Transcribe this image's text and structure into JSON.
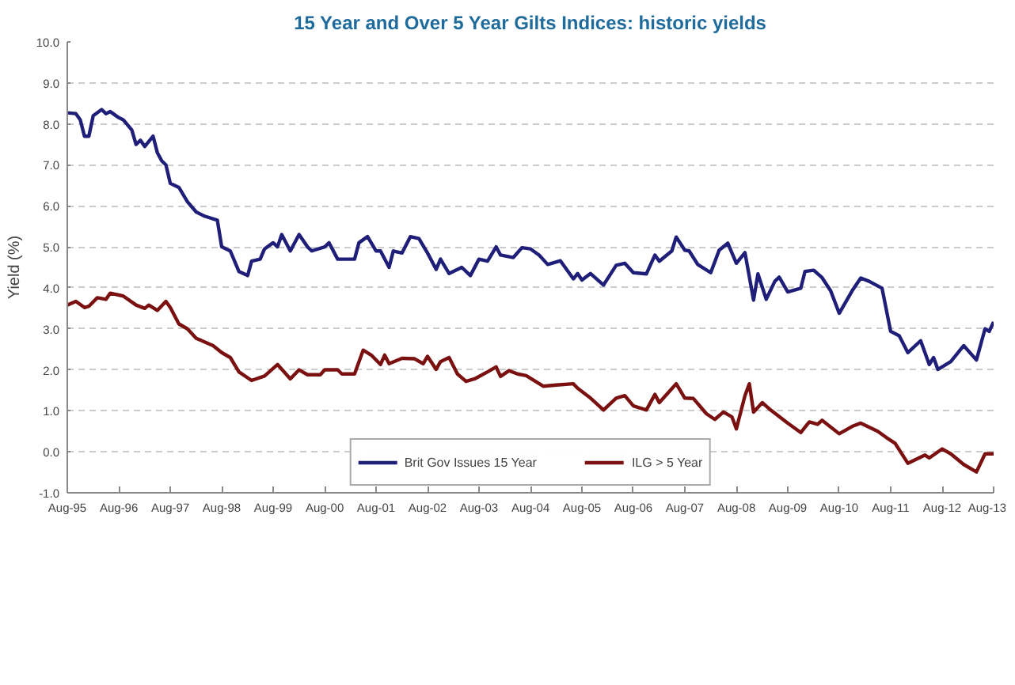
{
  "chart_data": {
    "type": "line",
    "title": "15 Year and Over 5 Year Gilts Indices: historic yields",
    "ylabel": "Yield (%)",
    "ylim": [
      -1,
      10
    ],
    "yticks": [
      {
        "value": -1,
        "label": "-1.0"
      },
      {
        "value": 0,
        "label": "0.0"
      },
      {
        "value": 1,
        "label": "1.0"
      },
      {
        "value": 2,
        "label": "2.0"
      },
      {
        "value": 3,
        "label": "3.0"
      },
      {
        "value": 4,
        "label": "4.0"
      },
      {
        "value": 5,
        "label": "5.0"
      },
      {
        "value": 6,
        "label": "6.0"
      },
      {
        "value": 7,
        "label": "7.0"
      },
      {
        "value": 8,
        "label": "8.0"
      },
      {
        "value": 9,
        "label": "9.0"
      },
      {
        "value": 10,
        "label": "10.0"
      }
    ],
    "xlim": [
      "1995-08",
      "2013-08"
    ],
    "xticks": [
      {
        "value": "1995-08",
        "label": "Aug-95"
      },
      {
        "value": "1996-08",
        "label": "Aug-96"
      },
      {
        "value": "1997-08",
        "label": "Aug-97"
      },
      {
        "value": "1998-08",
        "label": "Aug-98"
      },
      {
        "value": "1999-08",
        "label": "Aug-99"
      },
      {
        "value": "2000-08",
        "label": "Aug-00"
      },
      {
        "value": "2001-08",
        "label": "Aug-01"
      },
      {
        "value": "2002-08",
        "label": "Aug-02"
      },
      {
        "value": "2003-08",
        "label": "Aug-03"
      },
      {
        "value": "2004-08",
        "label": "Aug-04"
      },
      {
        "value": "2005-08",
        "label": "Aug-05"
      },
      {
        "value": "2006-08",
        "label": "Aug-06"
      },
      {
        "value": "2007-08",
        "label": "Aug-07"
      },
      {
        "value": "2008-08",
        "label": "Aug-08"
      },
      {
        "value": "2009-08",
        "label": "Aug-09"
      },
      {
        "value": "2010-08",
        "label": "Aug-10"
      },
      {
        "value": "2011-08",
        "label": "Aug-11"
      },
      {
        "value": "2012-08",
        "label": "Aug-12"
      },
      {
        "value": "2013-08",
        "label": "Aug-13"
      }
    ],
    "grid": "y",
    "legend": "bottom",
    "line_style": "solid",
    "series": [
      {
        "name": "Brit Gov Issues 15 Year",
        "color": "#1f1f7a",
        "x": [
          "1995-08",
          "1995-10",
          "1995-11",
          "1995-12",
          "1996-01",
          "1996-02",
          "1996-04",
          "1996-05",
          "1996-06",
          "1996-08",
          "1996-09",
          "1996-11",
          "1996-12",
          "1997-01",
          "1997-02",
          "1997-04",
          "1997-05",
          "1997-06",
          "1997-07",
          "1997-08",
          "1997-10",
          "1997-12",
          "1998-02",
          "1998-04",
          "1998-07",
          "1998-08",
          "1998-10",
          "1998-12",
          "1999-02",
          "1999-03",
          "1999-05",
          "1999-06",
          "1999-08",
          "1999-09",
          "1999-10",
          "1999-12",
          "2000-02",
          "2000-04",
          "2000-05",
          "2000-08",
          "2000-09",
          "2000-11",
          "2001-03",
          "2001-04",
          "2001-06",
          "2001-08",
          "2001-09",
          "2001-11",
          "2001-12",
          "2002-02",
          "2002-04",
          "2002-06",
          "2002-08",
          "2002-10",
          "2002-11",
          "2003-01",
          "2003-04",
          "2003-06",
          "2003-08",
          "2003-10",
          "2003-12",
          "2004-01",
          "2004-04",
          "2004-06",
          "2004-08",
          "2004-10",
          "2004-12",
          "2005-03",
          "2005-06",
          "2005-07",
          "2005-08",
          "2005-10",
          "2006-01",
          "2006-04",
          "2006-06",
          "2006-08",
          "2006-11",
          "2007-01",
          "2007-02",
          "2007-05",
          "2007-06",
          "2007-08",
          "2007-09",
          "2007-11",
          "2008-02",
          "2008-04",
          "2008-06",
          "2008-08",
          "2008-10",
          "2008-12",
          "2009-01",
          "2009-03",
          "2009-05",
          "2009-06",
          "2009-08",
          "2009-11",
          "2009-12",
          "2010-02",
          "2010-04",
          "2010-06",
          "2010-08",
          "2010-11",
          "2011-01",
          "2011-03",
          "2011-06",
          "2011-08",
          "2011-10",
          "2011-12",
          "2012-03",
          "2012-05",
          "2012-06",
          "2012-07",
          "2012-10",
          "2013-01",
          "2013-04",
          "2013-06",
          "2013-07",
          "2013-08"
        ],
        "values": [
          8.27,
          8.25,
          8.1,
          7.7,
          7.7,
          8.2,
          8.35,
          8.25,
          8.3,
          8.15,
          8.1,
          7.85,
          7.5,
          7.6,
          7.45,
          7.7,
          7.3,
          7.1,
          7.0,
          6.55,
          6.45,
          6.1,
          5.85,
          5.75,
          5.65,
          5.0,
          4.9,
          4.4,
          4.3,
          4.65,
          4.7,
          4.95,
          5.1,
          5.0,
          5.3,
          4.9,
          5.3,
          5.0,
          4.9,
          5.0,
          5.1,
          4.7,
          4.7,
          5.1,
          5.25,
          4.9,
          4.9,
          4.5,
          4.9,
          4.85,
          5.25,
          5.2,
          4.85,
          4.45,
          4.7,
          4.35,
          4.5,
          4.3,
          4.7,
          4.65,
          5.0,
          4.8,
          4.74,
          4.98,
          4.95,
          4.8,
          4.57,
          4.66,
          4.22,
          4.35,
          4.19,
          4.35,
          4.07,
          4.55,
          4.6,
          4.37,
          4.34,
          4.8,
          4.65,
          4.9,
          5.24,
          4.92,
          4.9,
          4.57,
          4.37,
          4.92,
          5.09,
          4.6,
          4.86,
          3.7,
          4.34,
          3.72,
          4.16,
          4.26,
          3.9,
          3.99,
          4.4,
          4.43,
          4.25,
          3.93,
          3.38,
          3.93,
          4.24,
          4.16,
          3.99,
          2.94,
          2.83,
          2.42,
          2.71,
          2.13,
          2.3,
          2.01,
          2.2,
          2.59,
          2.24,
          3.0,
          2.94,
          3.17
        ]
      },
      {
        "name": "ILG > 5 Year",
        "color": "#7a1010",
        "x": [
          "1995-08",
          "1995-10",
          "1995-12",
          "1996-01",
          "1996-03",
          "1996-05",
          "1996-06",
          "1996-09",
          "1996-12",
          "1997-02",
          "1997-03",
          "1997-05",
          "1997-07",
          "1997-08",
          "1997-10",
          "1997-12",
          "1998-02",
          "1998-06",
          "1998-08",
          "1998-10",
          "1998-12",
          "1999-03",
          "1999-06",
          "1999-09",
          "1999-12",
          "2000-02",
          "2000-04",
          "2000-07",
          "2000-08",
          "2000-11",
          "2000-12",
          "2001-03",
          "2001-05",
          "2001-07",
          "2001-09",
          "2001-10",
          "2001-11",
          "2002-02",
          "2002-05",
          "2002-07",
          "2002-08",
          "2002-10",
          "2002-11",
          "2003-01",
          "2003-03",
          "2003-05",
          "2003-07",
          "2003-10",
          "2003-12",
          "2004-01",
          "2004-03",
          "2004-05",
          "2004-07",
          "2004-11",
          "2005-02",
          "2005-06",
          "2005-07",
          "2005-10",
          "2006-01",
          "2006-04",
          "2006-06",
          "2006-08",
          "2006-11",
          "2007-01",
          "2007-02",
          "2007-06",
          "2007-08",
          "2007-10",
          "2008-01",
          "2008-03",
          "2008-05",
          "2008-07",
          "2008-08",
          "2008-10",
          "2008-11",
          "2008-12",
          "2009-02",
          "2009-04",
          "2009-08",
          "2009-11",
          "2010-01",
          "2010-03",
          "2010-04",
          "2010-08",
          "2010-11",
          "2011-01",
          "2011-05",
          "2011-07",
          "2011-09",
          "2011-12",
          "2012-04",
          "2012-05",
          "2012-08",
          "2012-10",
          "2013-01",
          "2013-04",
          "2013-06",
          "2013-08"
        ],
        "values": [
          3.58,
          3.67,
          3.52,
          3.55,
          3.76,
          3.72,
          3.87,
          3.8,
          3.58,
          3.5,
          3.58,
          3.45,
          3.67,
          3.52,
          3.12,
          3.0,
          2.77,
          2.59,
          2.42,
          2.3,
          1.95,
          1.74,
          1.85,
          2.13,
          1.78,
          2.0,
          1.88,
          1.88,
          2.0,
          2.0,
          1.9,
          1.9,
          2.48,
          2.35,
          2.13,
          2.36,
          2.15,
          2.28,
          2.27,
          2.15,
          2.33,
          2.01,
          2.2,
          2.3,
          1.9,
          1.72,
          1.78,
          1.95,
          2.07,
          1.84,
          1.98,
          1.9,
          1.86,
          1.6,
          1.63,
          1.66,
          1.55,
          1.31,
          1.02,
          1.31,
          1.37,
          1.12,
          1.02,
          1.4,
          1.2,
          1.66,
          1.31,
          1.3,
          0.93,
          0.79,
          0.97,
          0.85,
          0.56,
          1.37,
          1.66,
          0.97,
          1.2,
          1.02,
          0.7,
          0.47,
          0.73,
          0.67,
          0.77,
          0.44,
          0.62,
          0.7,
          0.5,
          0.35,
          0.21,
          -0.28,
          -0.08,
          -0.15,
          0.07,
          -0.05,
          -0.31,
          -0.49,
          -0.05,
          -0.05
        ]
      }
    ]
  }
}
